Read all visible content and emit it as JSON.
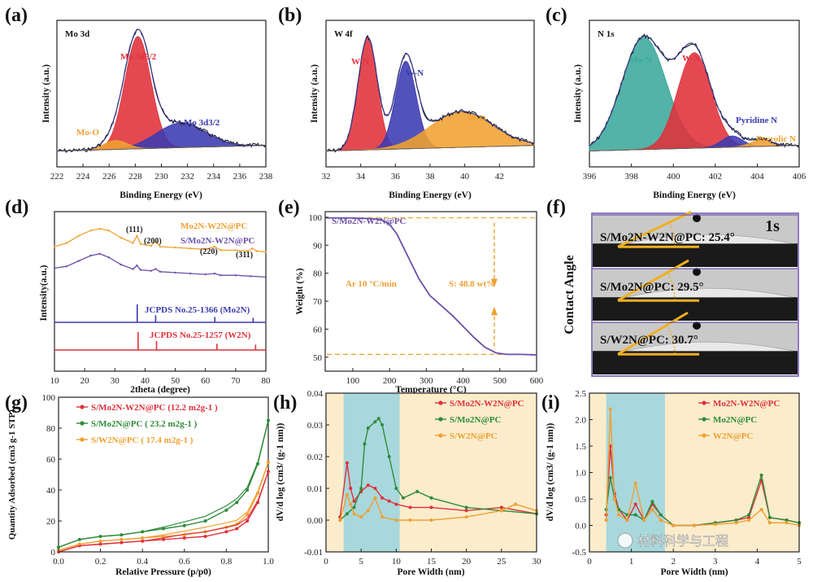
{
  "panels": {
    "a": {
      "letter": "(a)",
      "inside": "Mo 3d",
      "xlabel": "Binding Energy (eV)",
      "ylabel": "Intensity (a.u.)",
      "peaks": [
        {
          "label": "Mo 3d5/2"
        },
        {
          "label": "Mo 3d3/2"
        },
        {
          "label": "Mo-O"
        }
      ]
    },
    "b": {
      "letter": "(b)",
      "inside": "W 4f",
      "xlabel": "Binding Energy (eV)",
      "ylabel": "Intensity (a.u.)",
      "peaks": [
        {
          "label": "W-N"
        },
        {
          "label": "W-N"
        },
        {
          "label": "W-O"
        }
      ]
    },
    "c": {
      "letter": "(c)",
      "inside": "N 1s",
      "xlabel": "Binding Energy (eV)",
      "ylabel": "Intensity (a.u.)",
      "peaks": [
        {
          "label": "Mo-N"
        },
        {
          "label": "W-N"
        },
        {
          "label": "Pyridine N"
        },
        {
          "label": "Pyrrolic N"
        }
      ]
    },
    "d": {
      "letter": "(d)",
      "xlabel": "2theta (degree)",
      "ylabel": "Intensity(a.u.)",
      "legend": [
        "Mo2N-W2N@PC",
        "S/Mo2N-W2N@PC"
      ],
      "hkl": [
        "(111)",
        "(200)",
        "(220)",
        "(311)"
      ],
      "refs": [
        "JCPDS No.25-1366 (Mo2N)",
        "JCPDS No.25-1257 (W2N)"
      ]
    },
    "e": {
      "letter": "(e)",
      "title": "S/Mo2N-W2N@PC",
      "xlabel": "Temperature (°C)",
      "ylabel": "Weight (%)",
      "annotation_rate": "Ar 10 °C/min",
      "annotation_loss": "S: 48.8 wt%"
    },
    "f": {
      "letter": "(f)",
      "ylabel": "Contact Angle",
      "time": "1s",
      "rows": [
        {
          "label": "S/Mo2N-W2N@PC: 25.4°",
          "angle_deg": 25.4
        },
        {
          "label": "S/Mo2N@PC: 29.5°",
          "angle_deg": 29.5
        },
        {
          "label": "S/W2N@PC: 30.7°",
          "angle_deg": 30.7
        }
      ]
    },
    "g": {
      "letter": "(g)",
      "xlabel": "Relative Pressure (p/p0)",
      "ylabel": "Quantity Adsorbed (cm3 g-1 STP)",
      "legend": [
        "S/Mo2N-W2N@PC (12.2 m2g-1 )",
        "S/Mo2N@PC ( 23.2 m2g-1 )",
        "S/W2N@PC ( 17.4 m2g-1 )"
      ]
    },
    "h": {
      "letter": "(h)",
      "xlabel": "Pore Width (nm)",
      "ylabel": "dV/d log (cm3/ (g-1 nm))",
      "legend": [
        "S/Mo2N-W2N@PC",
        "S/Mo2N@PC",
        "S/W2N@PC"
      ]
    },
    "i": {
      "letter": "(i)",
      "xlabel": "Pore Width (nm)",
      "ylabel": "dV/d log (cm3/ (g-1 nm))",
      "legend": [
        "Mo2N-W2N@PC",
        "Mo2N@PC",
        "W2N@PC"
      ]
    }
  },
  "watermark": "材料科学与工程",
  "colors": {
    "red": "#e0303a",
    "blue": "#3a3ab0",
    "orange": "#f0a030",
    "green": "#2e8b3a",
    "purple": "#6a50a8",
    "teal": "#3aa89a",
    "cyan_band": "#a8d8dc",
    "cream_band": "#fbeccc"
  },
  "chart_data": [
    {
      "id": "a",
      "type": "line",
      "title": "Mo 3d",
      "xlabel": "Binding Energy (eV)",
      "ylabel": "Intensity (a.u.)",
      "xlim": [
        238,
        222
      ],
      "xticks": [
        222,
        224,
        226,
        228,
        230,
        232,
        234,
        236,
        238
      ],
      "series": [
        {
          "name": "Mo 3d5/2",
          "kind": "peak",
          "center": 228.2,
          "height": 1.0,
          "width": 1.0,
          "color": "#e0303a"
        },
        {
          "name": "Mo 3d3/2",
          "kind": "peak",
          "center": 231.5,
          "height": 0.22,
          "width": 1.9,
          "color": "#3a3ab0"
        },
        {
          "name": "Mo-O",
          "kind": "peak",
          "center": 226.5,
          "height": 0.08,
          "width": 0.9,
          "color": "#f0a030"
        }
      ]
    },
    {
      "id": "b",
      "type": "line",
      "title": "W 4f",
      "xlabel": "Binding Energy (eV)",
      "ylabel": "Intensity (a.u.)",
      "xlim": [
        44,
        32
      ],
      "xticks": [
        32,
        34,
        36,
        38,
        40,
        42
      ],
      "series": [
        {
          "name": "W-N",
          "kind": "peak",
          "center": 34.4,
          "height": 1.0,
          "width": 0.55,
          "color": "#e0303a"
        },
        {
          "name": "W-N",
          "kind": "peak",
          "center": 36.6,
          "height": 0.78,
          "width": 0.6,
          "color": "#3a3ab0"
        },
        {
          "name": "W-O",
          "kind": "peak",
          "center": 39.8,
          "height": 0.32,
          "width": 1.8,
          "color": "#f0a030"
        }
      ]
    },
    {
      "id": "c",
      "type": "line",
      "title": "N 1s",
      "xlabel": "Binding Energy (eV)",
      "ylabel": "Intensity (a.u.)",
      "xlim": [
        406,
        396
      ],
      "xticks": [
        396,
        398,
        400,
        402,
        404,
        406
      ],
      "series": [
        {
          "name": "Mo-N",
          "kind": "peak",
          "center": 398.6,
          "height": 1.0,
          "width": 1.05,
          "color": "#3aa89a"
        },
        {
          "name": "W-N",
          "kind": "peak",
          "center": 401.0,
          "height": 0.85,
          "width": 0.8,
          "color": "#e0303a"
        },
        {
          "name": "Pyridine N",
          "kind": "peak",
          "center": 402.8,
          "height": 0.1,
          "width": 0.5,
          "color": "#3a3ab0"
        },
        {
          "name": "Pyrrolic N",
          "kind": "peak",
          "center": 404.2,
          "height": 0.06,
          "width": 0.5,
          "color": "#f0a030"
        }
      ]
    },
    {
      "id": "d",
      "type": "line",
      "xlabel": "2theta (degree)",
      "ylabel": "Intensity(a.u.)",
      "xlim": [
        10,
        80
      ],
      "xticks": [
        10,
        20,
        30,
        40,
        50,
        60,
        70,
        80
      ],
      "series": [
        {
          "name": "Mo2N-W2N@PC",
          "color": "#f0a030",
          "x": [
            10,
            14,
            18,
            22,
            25,
            28,
            32,
            36,
            37.3,
            38.5,
            42,
            43.5,
            45,
            50,
            55,
            60,
            63,
            65,
            70,
            74,
            75.5,
            77,
            80
          ],
          "y": [
            0.7,
            0.74,
            0.82,
            0.88,
            0.9,
            0.88,
            0.8,
            0.74,
            0.82,
            0.73,
            0.71,
            0.76,
            0.7,
            0.69,
            0.68,
            0.67,
            0.7,
            0.66,
            0.66,
            0.65,
            0.68,
            0.65,
            0.64
          ]
        },
        {
          "name": "S/Mo2N-W2N@PC",
          "color": "#6a50a8",
          "x": [
            10,
            14,
            18,
            22,
            25,
            28,
            32,
            36,
            37.3,
            38.5,
            42,
            43.5,
            45,
            50,
            55,
            60,
            63,
            65,
            70,
            75,
            80
          ],
          "y": [
            0.46,
            0.48,
            0.54,
            0.6,
            0.62,
            0.58,
            0.5,
            0.45,
            0.49,
            0.44,
            0.43,
            0.45,
            0.42,
            0.41,
            0.4,
            0.39,
            0.4,
            0.38,
            0.38,
            0.37,
            0.36
          ]
        }
      ],
      "sticks": [
        {
          "name": "JCPDS No.25-1366 (Mo2N)",
          "color": "#3a3ab0",
          "x": [
            37.4,
            43.5,
            63.1,
            75.8
          ],
          "h": [
            1.0,
            0.4,
            0.3,
            0.25
          ]
        },
        {
          "name": "JCPDS No.25-1257 (W2N)",
          "color": "#e0303a",
          "x": [
            37.7,
            43.8,
            63.8,
            76.6
          ],
          "h": [
            1.0,
            0.5,
            0.35,
            0.3
          ]
        }
      ]
    },
    {
      "id": "e",
      "type": "line",
      "xlabel": "Temperature (°C)",
      "ylabel": "Weight (%)",
      "xlim": [
        25,
        600
      ],
      "ylim": [
        45,
        102
      ],
      "xticks": [
        100,
        200,
        300,
        400,
        500,
        600
      ],
      "yticks": [
        50,
        60,
        70,
        80,
        90,
        100
      ],
      "series": [
        {
          "name": "S/Mo2N-W2N@PC",
          "color": "#6a50a8",
          "x": [
            25,
            100,
            150,
            180,
            200,
            220,
            250,
            280,
            310,
            340,
            370,
            400,
            430,
            460,
            490,
            520,
            560,
            600
          ],
          "y": [
            99.8,
            99.7,
            99.5,
            99.0,
            97.5,
            94.0,
            86.0,
            78.0,
            72.0,
            68.5,
            65.0,
            61.0,
            57.0,
            53.5,
            51.5,
            51.0,
            51.0,
            50.8
          ]
        }
      ],
      "reference_lines": [
        99.8,
        51.0
      ]
    },
    {
      "id": "g",
      "type": "line",
      "xlabel": "Relative Pressure (p/p0)",
      "ylabel": "Quantity Adsorbed (cm3 g-1 STP)",
      "xlim": [
        0,
        1
      ],
      "ylim": [
        0,
        100
      ],
      "xticks": [
        0.0,
        0.2,
        0.4,
        0.6,
        0.8,
        1.0
      ],
      "yticks": [
        0,
        20,
        40,
        60,
        80,
        100
      ],
      "series": [
        {
          "name": "S/Mo2N-W2N@PC (12.2 m2g-1)",
          "color": "#e0303a",
          "x": [
            0.0,
            0.1,
            0.2,
            0.3,
            0.4,
            0.5,
            0.6,
            0.7,
            0.8,
            0.85,
            0.9,
            0.95,
            1.0
          ],
          "y": [
            0,
            4,
            5,
            6,
            7,
            8,
            9,
            10,
            13,
            15,
            20,
            32,
            52
          ]
        },
        {
          "name": "S/Mo2N@PC (23.2 m2g-1)",
          "color": "#2e8b3a",
          "x": [
            0.0,
            0.1,
            0.2,
            0.3,
            0.4,
            0.5,
            0.6,
            0.7,
            0.8,
            0.85,
            0.9,
            0.95,
            1.0
          ],
          "y": [
            3,
            8,
            10,
            11,
            13,
            15,
            17,
            20,
            27,
            32,
            40,
            57,
            85
          ]
        },
        {
          "name": "S/W2N@PC (17.4 m2g-1)",
          "color": "#f0a030",
          "x": [
            0.0,
            0.1,
            0.2,
            0.3,
            0.4,
            0.5,
            0.6,
            0.7,
            0.8,
            0.85,
            0.9,
            0.95,
            1.0
          ],
          "y": [
            1,
            5,
            7,
            8,
            9,
            10,
            11,
            13,
            16,
            18,
            24,
            38,
            58
          ]
        }
      ]
    },
    {
      "id": "h",
      "type": "line",
      "xlabel": "Pore Width (nm)",
      "ylabel": "dV/d log (cm3/ (g-1 nm))",
      "xlim": [
        0,
        30
      ],
      "ylim": [
        -0.01,
        0.04
      ],
      "xticks": [
        0,
        5,
        10,
        15,
        20,
        25,
        30
      ],
      "yticks": [
        -0.01,
        0.0,
        0.01,
        0.02,
        0.03,
        0.04
      ],
      "band": [
        2.5,
        10.5
      ],
      "series": [
        {
          "name": "S/Mo2N-W2N@PC",
          "color": "#e0303a",
          "x": [
            2,
            3,
            3.5,
            4,
            5,
            6,
            7,
            8,
            9,
            10,
            12,
            15,
            20,
            25,
            30
          ],
          "y": [
            0.001,
            0.018,
            0.01,
            0.006,
            0.009,
            0.011,
            0.01,
            0.007,
            0.006,
            0.005,
            0.004,
            0.004,
            0.003,
            0.004,
            0.002
          ]
        },
        {
          "name": "S/Mo2N@PC",
          "color": "#2e8b3a",
          "x": [
            2,
            3,
            4,
            5,
            5.5,
            6,
            7,
            7.5,
            8,
            9,
            10,
            11,
            13,
            15,
            20,
            25,
            30
          ],
          "y": [
            0.0,
            0.002,
            0.004,
            0.01,
            0.024,
            0.029,
            0.031,
            0.032,
            0.03,
            0.02,
            0.01,
            0.007,
            0.009,
            0.007,
            0.004,
            0.003,
            0.002
          ]
        },
        {
          "name": "S/W2N@PC",
          "color": "#f0a030",
          "x": [
            2,
            3,
            3.5,
            4,
            5,
            6,
            7,
            8,
            10,
            12,
            15,
            20,
            25,
            27,
            30
          ],
          "y": [
            0.0,
            0.008,
            0.005,
            0.002,
            0.001,
            0.003,
            0.007,
            0.001,
            0.0,
            0.0,
            0.0,
            0.001,
            0.003,
            0.005,
            0.003
          ]
        }
      ]
    },
    {
      "id": "i",
      "type": "line",
      "xlabel": "Pore Width (nm)",
      "ylabel": "dV/d log (cm3/ (g-1 nm))",
      "xlim": [
        0,
        5
      ],
      "ylim": [
        -0.5,
        2.5
      ],
      "xticks": [
        0,
        1,
        2,
        3,
        4,
        5
      ],
      "yticks": [
        -0.5,
        0.0,
        0.5,
        1.0,
        1.5,
        2.0,
        2.5
      ],
      "band": [
        0.4,
        1.8
      ],
      "series": [
        {
          "name": "Mo2N-W2N@PC",
          "color": "#e0303a",
          "x": [
            0.4,
            0.5,
            0.6,
            0.7,
            0.9,
            1.1,
            1.3,
            1.5,
            1.7,
            2.0,
            2.5,
            3.0,
            3.5,
            3.8,
            4.1,
            4.3,
            4.7,
            5.0
          ],
          "y": [
            0.2,
            1.5,
            0.6,
            0.3,
            0.1,
            0.4,
            0.1,
            0.4,
            0.2,
            0.0,
            0.0,
            0.05,
            0.1,
            0.15,
            0.85,
            0.15,
            0.1,
            0.05
          ]
        },
        {
          "name": "Mo2N@PC",
          "color": "#2e8b3a",
          "x": [
            0.4,
            0.5,
            0.6,
            0.7,
            0.9,
            1.1,
            1.3,
            1.5,
            1.7,
            2.0,
            2.5,
            3.0,
            3.5,
            3.8,
            4.1,
            4.3,
            4.7,
            5.0
          ],
          "y": [
            0.3,
            0.9,
            0.5,
            0.3,
            0.2,
            0.2,
            0.1,
            0.45,
            0.2,
            0.0,
            0.0,
            0.05,
            0.1,
            0.2,
            0.95,
            0.15,
            0.1,
            0.05
          ]
        },
        {
          "name": "W2N@PC",
          "color": "#f0a030",
          "x": [
            0.4,
            0.5,
            0.6,
            0.7,
            0.9,
            1.1,
            1.3,
            1.5,
            1.7,
            2.0,
            2.5,
            3.0,
            3.5,
            3.8,
            4.1,
            4.3,
            4.7,
            5.0
          ],
          "y": [
            0.1,
            2.2,
            0.5,
            0.2,
            0.1,
            0.8,
            0.1,
            0.3,
            0.1,
            0.0,
            0.0,
            0.02,
            0.05,
            0.1,
            0.3,
            0.05,
            0.05,
            0.0
          ]
        }
      ]
    }
  ]
}
